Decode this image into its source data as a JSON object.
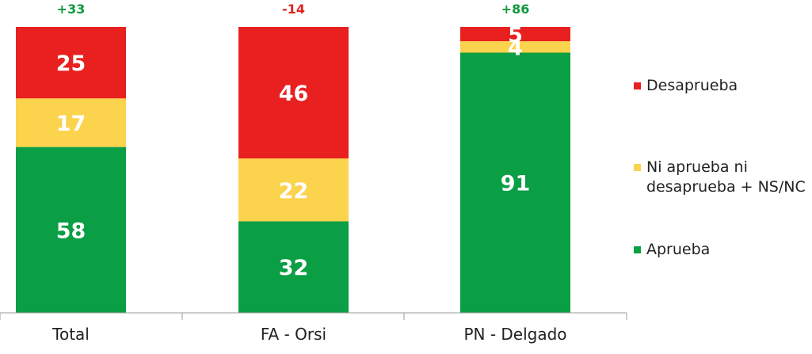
{
  "chart_data": {
    "type": "bar",
    "stacked": true,
    "categories": [
      "Total",
      "FA - Orsi",
      "PN - Delgado"
    ],
    "series": [
      {
        "name": "Aprueba",
        "values": [
          58,
          32,
          91
        ],
        "color": "#0a9e45"
      },
      {
        "name": "Ni aprueba ni desaprueba + NS/NC",
        "values": [
          17,
          22,
          4
        ],
        "color": "#fcd34d"
      },
      {
        "name": "Desaprueba",
        "values": [
          25,
          46,
          5
        ],
        "color": "#e8201f"
      }
    ],
    "net_labels": [
      "+33",
      "-14",
      "+86"
    ],
    "net_colors": [
      "#12993f",
      "#e0241f",
      "#12993f"
    ],
    "ylim": [
      0,
      100
    ],
    "grid": false,
    "legend_position": "right"
  },
  "legend": {
    "items": [
      {
        "label_lines": [
          "Desaprueba"
        ],
        "color": "#e8201f"
      },
      {
        "label_lines": [
          "Ni aprueba ni",
          "desaprueba + NS/NC"
        ],
        "color": "#fcd34d"
      },
      {
        "label_lines": [
          "Aprueba"
        ],
        "color": "#0a9e45"
      }
    ]
  }
}
